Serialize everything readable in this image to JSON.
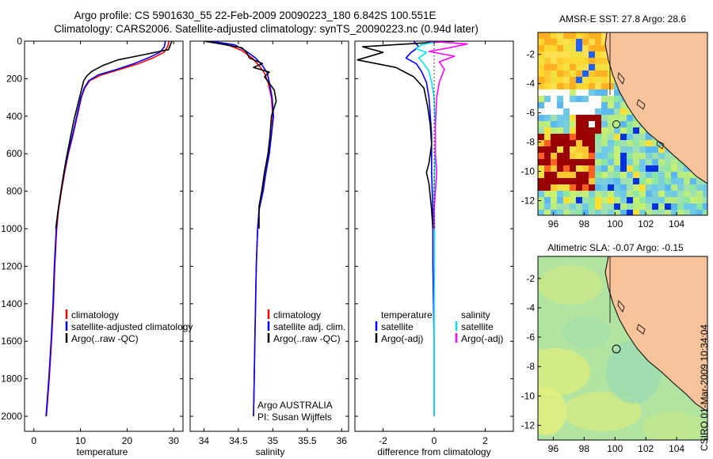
{
  "title": {
    "line1": "Argo profile: CS 5901630_55 22-Feb-2009 20090223_180 6.842S 100.551E",
    "line2": "Climatology: CARS2006. Satellite-adjusted climatology: synTS_20090223.nc (0.94d later)"
  },
  "colors": {
    "climatology": "#ff0000",
    "satellite": "#0000ff",
    "argo": "#000000",
    "salinity_satellite": "#00e5ee",
    "salinity_argo": "#ff00ff",
    "land": "#f7c39a"
  },
  "chart_data": [
    {
      "id": "temperature",
      "type": "line",
      "xlabel": "temperature",
      "ylabel": "",
      "xlim": [
        -2,
        32
      ],
      "ylim": [
        2080,
        0
      ],
      "xticks": [
        0,
        10,
        20,
        30
      ],
      "yticks": [
        0,
        200,
        400,
        600,
        800,
        1000,
        1200,
        1400,
        1600,
        1800,
        2000
      ],
      "legend_position": "center",
      "legend": [
        {
          "label": "climatology",
          "color": "#ff0000"
        },
        {
          "label": "satellite-adjusted climatology",
          "color": "#0000ff"
        },
        {
          "label": "Argo(..raw -QC)",
          "color": "#000000"
        }
      ],
      "series": [
        {
          "name": "climatology",
          "color": "#ff0000",
          "width": 1.6,
          "points": [
            [
              29.0,
              0
            ],
            [
              28.7,
              30
            ],
            [
              27.9,
              60
            ],
            [
              25.5,
              90
            ],
            [
              22.5,
              120
            ],
            [
              18.5,
              150
            ],
            [
              14.5,
              180
            ],
            [
              12.0,
              210
            ],
            [
              10.9,
              250
            ],
            [
              10.2,
              300
            ],
            [
              9.3,
              400
            ],
            [
              8.4,
              500
            ],
            [
              7.4,
              600
            ],
            [
              6.6,
              700
            ],
            [
              5.9,
              800
            ],
            [
              5.3,
              900
            ],
            [
              4.9,
              1000
            ],
            [
              4.5,
              1200
            ],
            [
              4.2,
              1400
            ],
            [
              3.8,
              1600
            ],
            [
              3.3,
              1800
            ],
            [
              2.7,
              2000
            ]
          ]
        },
        {
          "name": "satellite-adjusted climatology",
          "color": "#0000ff",
          "width": 1.6,
          "points": [
            [
              28.2,
              0
            ],
            [
              28.0,
              30
            ],
            [
              27.0,
              60
            ],
            [
              24.5,
              90
            ],
            [
              21.5,
              120
            ],
            [
              17.8,
              150
            ],
            [
              13.8,
              180
            ],
            [
              11.8,
              210
            ],
            [
              10.8,
              250
            ],
            [
              10.1,
              300
            ],
            [
              9.2,
              400
            ],
            [
              8.3,
              500
            ],
            [
              7.3,
              600
            ],
            [
              6.5,
              700
            ],
            [
              5.8,
              800
            ],
            [
              5.2,
              900
            ],
            [
              4.8,
              1000
            ],
            [
              4.4,
              1200
            ],
            [
              4.1,
              1400
            ],
            [
              3.7,
              1600
            ],
            [
              3.2,
              1800
            ],
            [
              2.6,
              2000
            ]
          ]
        },
        {
          "name": "Argo(..raw -QC)",
          "color": "#000000",
          "width": 1.6,
          "points": [
            [
              29.6,
              0
            ],
            [
              29.3,
              20
            ],
            [
              28.9,
              45
            ],
            [
              26.0,
              60
            ],
            [
              22.0,
              80
            ],
            [
              18.0,
              100
            ],
            [
              14.8,
              130
            ],
            [
              12.5,
              160
            ],
            [
              11.4,
              185
            ],
            [
              10.7,
              210
            ],
            [
              10.2,
              260
            ],
            [
              9.3,
              350
            ],
            [
              8.6,
              420
            ],
            [
              7.8,
              520
            ],
            [
              7.0,
              620
            ],
            [
              6.3,
              720
            ],
            [
              5.7,
              820
            ],
            [
              5.1,
              920
            ],
            [
              4.7,
              1000
            ]
          ]
        }
      ]
    },
    {
      "id": "salinity",
      "type": "line",
      "xlabel": "salinity",
      "ylabel": "",
      "xlim": [
        33.8,
        36.1
      ],
      "ylim": [
        2080,
        0
      ],
      "xticks": [
        34,
        34.5,
        35,
        35.5,
        36
      ],
      "xtick_labels": [
        "34",
        "34.5",
        "35",
        "35.5",
        "36"
      ],
      "legend_position": "center",
      "legend": [
        {
          "label": "climatology",
          "color": "#ff0000"
        },
        {
          "label": "satellite adj. clim.",
          "color": "#0000ff"
        },
        {
          "label": "Argo(..raw -QC)",
          "color": "#000000"
        }
      ],
      "series": [
        {
          "name": "climatology",
          "color": "#ff0000",
          "width": 1.6,
          "points": [
            [
              34.05,
              0
            ],
            [
              34.35,
              20
            ],
            [
              34.55,
              50
            ],
            [
              34.7,
              90
            ],
            [
              34.8,
              130
            ],
            [
              34.88,
              170
            ],
            [
              34.93,
              220
            ],
            [
              34.98,
              300
            ],
            [
              35.0,
              400
            ],
            [
              34.98,
              500
            ],
            [
              34.94,
              600
            ],
            [
              34.9,
              700
            ],
            [
              34.85,
              800
            ],
            [
              34.8,
              900
            ],
            [
              34.78,
              1000
            ],
            [
              34.76,
              1200
            ],
            [
              34.75,
              1400
            ],
            [
              34.74,
              1600
            ],
            [
              34.73,
              1800
            ],
            [
              34.72,
              2000
            ]
          ]
        },
        {
          "name": "satellite adj. clim.",
          "color": "#0000ff",
          "width": 1.6,
          "points": [
            [
              34.1,
              0
            ],
            [
              34.45,
              20
            ],
            [
              34.6,
              50
            ],
            [
              34.75,
              90
            ],
            [
              34.85,
              130
            ],
            [
              34.92,
              170
            ],
            [
              34.95,
              220
            ],
            [
              34.99,
              300
            ],
            [
              35.01,
              400
            ],
            [
              34.98,
              500
            ],
            [
              34.95,
              600
            ],
            [
              34.9,
              700
            ],
            [
              34.86,
              800
            ],
            [
              34.8,
              900
            ],
            [
              34.78,
              1000
            ],
            [
              34.76,
              1200
            ],
            [
              34.75,
              1400
            ],
            [
              34.74,
              1600
            ],
            [
              34.73,
              1800
            ],
            [
              34.72,
              2000
            ]
          ]
        },
        {
          "name": "Argo(..raw -QC)",
          "color": "#000000",
          "width": 1.6,
          "points": [
            [
              34.0,
              0
            ],
            [
              34.25,
              15
            ],
            [
              34.55,
              35
            ],
            [
              34.62,
              60
            ],
            [
              34.66,
              90
            ],
            [
              34.85,
              120
            ],
            [
              34.72,
              140
            ],
            [
              34.95,
              165
            ],
            [
              34.88,
              190
            ],
            [
              35.02,
              260
            ],
            [
              35.05,
              320
            ],
            [
              34.98,
              400
            ],
            [
              34.96,
              500
            ],
            [
              34.93,
              600
            ],
            [
              34.88,
              700
            ],
            [
              34.84,
              800
            ],
            [
              34.8,
              880
            ],
            [
              34.8,
              1000
            ]
          ]
        }
      ]
    },
    {
      "id": "difference",
      "type": "line",
      "xlabel": "difference from climatology",
      "ylabel": "",
      "xlim": [
        -3.1,
        3.1
      ],
      "ylim": [
        2080,
        0
      ],
      "xticks": [
        -2,
        0,
        2
      ],
      "legend_position": "center",
      "legend_headers": [
        "temperature",
        "salinity"
      ],
      "legend": [
        {
          "label": "satellite",
          "color": "#0000ff",
          "column": 0
        },
        {
          "label": "Argo(-adj)",
          "color": "#000000",
          "column": 0
        },
        {
          "label": "satellite",
          "color": "#00e5ee",
          "column": 1
        },
        {
          "label": "Argo(-adj)",
          "color": "#ff00ff",
          "column": 1
        }
      ],
      "series": [
        {
          "name": "temperature satellite",
          "color": "#0000ff",
          "width": 1.6,
          "points": [
            [
              -0.8,
              0
            ],
            [
              -0.6,
              30
            ],
            [
              -0.9,
              60
            ],
            [
              -1.1,
              90
            ],
            [
              -0.7,
              120
            ],
            [
              -0.5,
              160
            ],
            [
              -0.3,
              220
            ],
            [
              -0.2,
              300
            ],
            [
              -0.15,
              400
            ],
            [
              -0.1,
              500
            ],
            [
              -0.1,
              700
            ],
            [
              -0.05,
              900
            ],
            [
              -0.05,
              1200
            ],
            [
              0.0,
              1600
            ],
            [
              0.0,
              2000
            ]
          ]
        },
        {
          "name": "temperature Argo(-adj)",
          "color": "#000000",
          "width": 1.6,
          "points": [
            [
              0.8,
              0
            ],
            [
              -0.5,
              10
            ],
            [
              -2.8,
              30
            ],
            [
              -2.0,
              60
            ],
            [
              -3.0,
              100
            ],
            [
              -1.5,
              140
            ],
            [
              -0.8,
              190
            ],
            [
              -0.4,
              250
            ],
            [
              -0.25,
              350
            ],
            [
              -0.15,
              450
            ],
            [
              -0.1,
              550
            ],
            [
              -0.2,
              650
            ],
            [
              -0.3,
              700
            ],
            [
              -0.2,
              760
            ],
            [
              -0.1,
              900
            ],
            [
              -0.05,
              1000
            ]
          ]
        },
        {
          "name": "salinity satellite",
          "color": "#00e5ee",
          "width": 1.6,
          "points": [
            [
              0.2,
              0
            ],
            [
              -0.5,
              20
            ],
            [
              -0.7,
              40
            ],
            [
              -0.3,
              60
            ],
            [
              -0.6,
              90
            ],
            [
              -0.4,
              120
            ],
            [
              -0.2,
              160
            ],
            [
              -0.1,
              220
            ],
            [
              0.0,
              300
            ],
            [
              0.05,
              500
            ],
            [
              0.0,
              800
            ],
            [
              0.02,
              1000
            ],
            [
              0.0,
              1400
            ],
            [
              0.0,
              2000
            ]
          ]
        },
        {
          "name": "salinity Argo(-adj)",
          "color": "#ff00ff",
          "width": 1.6,
          "points": [
            [
              -0.3,
              0
            ],
            [
              1.3,
              15
            ],
            [
              0.6,
              35
            ],
            [
              -0.2,
              55
            ],
            [
              0.8,
              80
            ],
            [
              0.2,
              110
            ],
            [
              0.4,
              150
            ],
            [
              0.2,
              220
            ],
            [
              0.1,
              300
            ],
            [
              0.05,
              450
            ],
            [
              0.05,
              600
            ],
            [
              0.1,
              700
            ],
            [
              0.05,
              800
            ],
            [
              0.0,
              900
            ],
            [
              0.0,
              1000
            ]
          ]
        },
        {
          "name": "reference",
          "color": "#000000",
          "width": 1.0,
          "dotted": true,
          "points": [
            [
              0,
              0
            ],
            [
              0,
              1000
            ]
          ]
        }
      ]
    }
  ],
  "maps": [
    {
      "id": "sst-map",
      "title": "AMSR-E SST: 27.8 Argo: 28.6",
      "xticks": [
        96,
        98,
        100,
        102,
        104
      ],
      "yticks": [
        -2,
        -4,
        -6,
        -8,
        -10,
        -12
      ],
      "lon_range": [
        95,
        106
      ],
      "lat_range": [
        -13,
        -0.5
      ],
      "profile_marker": [
        100.55,
        -6.84
      ]
    },
    {
      "id": "sla-map",
      "title": "Altimetric SLA: -0.07 Argo: -0.15",
      "xticks": [
        96,
        98,
        100,
        102,
        104
      ],
      "yticks": [
        -2,
        -4,
        -6,
        -8,
        -10,
        -12
      ],
      "lon_range": [
        95,
        106
      ],
      "lat_range": [
        -13,
        -0.5
      ],
      "profile_marker": [
        100.55,
        -6.84
      ]
    }
  ],
  "annotations": {
    "institution": "Argo AUSTRALIA",
    "pi": "PI: Susan Wijffels",
    "stamp": "CSIRO 01-Mar-2009 10:34:04"
  }
}
